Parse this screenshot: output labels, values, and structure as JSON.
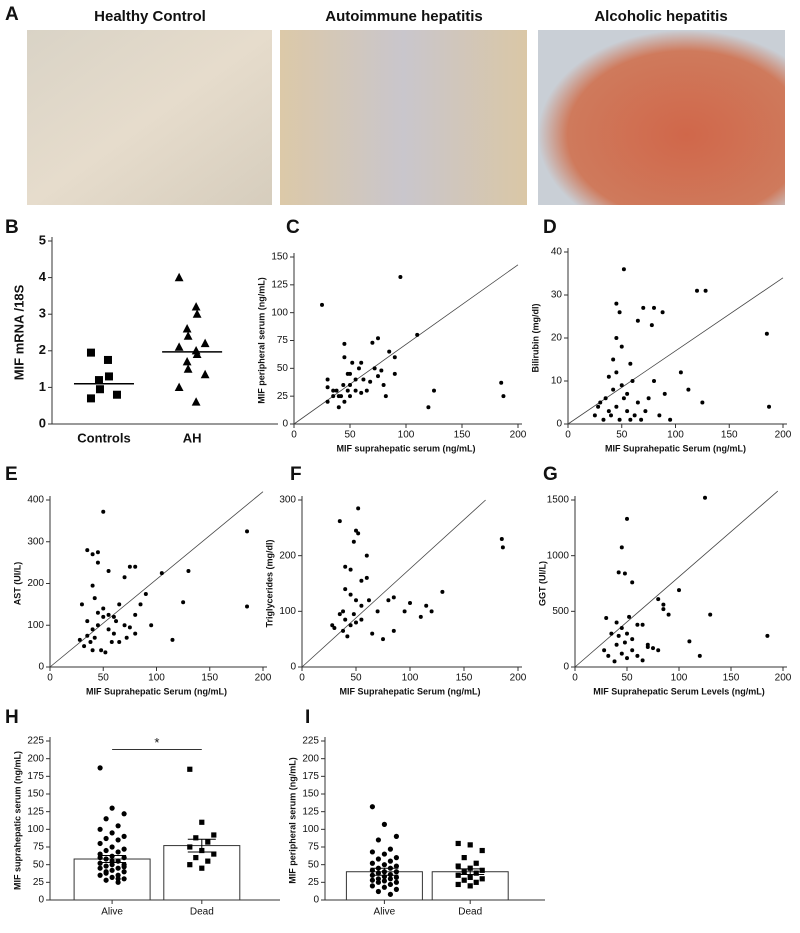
{
  "chart_data": [
    {
      "type": "image",
      "label": "A",
      "titles": [
        "Healthy Control",
        "Autoimmune hepatitis",
        "Alcoholic hepatitis"
      ]
    },
    {
      "type": "dotplot",
      "label": "B",
      "ylabel": "MIF mRNA /18S",
      "categories": [
        "Controls",
        "AH"
      ],
      "markers": [
        "square",
        "triangle"
      ],
      "values": [
        [
          1.95,
          1.75,
          1.3,
          1.2,
          0.95,
          0.8,
          0.7
        ],
        [
          4.0,
          3.2,
          3.0,
          2.6,
          2.4,
          2.2,
          2.1,
          2.0,
          1.9,
          1.7,
          1.5,
          1.35,
          1.0,
          0.6
        ]
      ],
      "medians": [
        1.1,
        1.97
      ],
      "ylim": [
        0,
        5
      ],
      "yticks": [
        0,
        1,
        2,
        3,
        4,
        5
      ]
    },
    {
      "type": "scatter",
      "label": "C",
      "xlabel": "MIF suprahepatic serum (ng/mL)",
      "ylabel": "MIF peripheral serum (ng/mL)",
      "x": [
        25,
        95,
        30,
        35,
        40,
        42,
        45,
        38,
        48,
        50,
        55,
        45,
        45,
        48,
        52,
        60,
        62,
        65,
        70,
        72,
        75,
        78,
        80,
        82,
        85,
        90,
        110,
        120,
        125,
        185,
        187,
        30,
        35,
        40,
        44,
        50,
        55,
        58,
        60,
        68,
        75,
        90,
        30,
        50
      ],
      "y": [
        107,
        132,
        33,
        25,
        15,
        25,
        20,
        30,
        30,
        35,
        40,
        60,
        72,
        45,
        55,
        55,
        40,
        30,
        73,
        50,
        43,
        48,
        35,
        25,
        65,
        45,
        80,
        15,
        30,
        37,
        25,
        20,
        30,
        25,
        35,
        25,
        30,
        50,
        28,
        38,
        77,
        60,
        40,
        45
      ],
      "fit_line": {
        "x": [
          0,
          200
        ],
        "y": [
          0,
          143
        ]
      },
      "xlim": [
        0,
        200
      ],
      "ylim": [
        0,
        150
      ],
      "xticks": [
        0,
        50,
        100,
        150,
        200
      ],
      "yticks": [
        0,
        25,
        50,
        75,
        100,
        125,
        150
      ]
    },
    {
      "type": "scatter",
      "label": "D",
      "xlabel": "MIF Suprahepatic Serum (ng/mL)",
      "ylabel": "Bilirubin (mg/dl)",
      "x": [
        52,
        45,
        48,
        45,
        50,
        42,
        58,
        65,
        70,
        80,
        88,
        78,
        120,
        128,
        185,
        187,
        105,
        125,
        112,
        30,
        35,
        38,
        40,
        42,
        45,
        48,
        50,
        55,
        55,
        60,
        62,
        65,
        68,
        72,
        75,
        80,
        85,
        90,
        95,
        25,
        28,
        33,
        38,
        45,
        52,
        58
      ],
      "y": [
        36,
        28,
        26,
        20,
        18,
        15,
        14,
        24,
        27,
        27,
        26,
        23,
        31,
        31,
        21,
        4,
        12,
        5,
        8,
        5,
        6,
        3,
        2,
        8,
        4,
        1,
        9,
        3,
        7,
        10,
        2,
        5,
        1,
        3,
        6,
        10,
        2,
        7,
        1,
        2,
        4,
        1,
        11,
        12,
        6,
        1
      ],
      "fit_line": {
        "x": [
          0,
          200
        ],
        "y": [
          0,
          34
        ]
      },
      "xlim": [
        0,
        200
      ],
      "ylim": [
        0,
        40
      ],
      "xticks": [
        0,
        50,
        100,
        150,
        200
      ],
      "yticks": [
        0,
        10,
        20,
        30,
        40
      ]
    },
    {
      "type": "scatter",
      "label": "E",
      "xlabel": "MIF Suprahepatic Serum (ng/mL)",
      "ylabel": "AST (UI/L)",
      "x": [
        50,
        35,
        40,
        45,
        45,
        40,
        42,
        55,
        75,
        70,
        80,
        105,
        130,
        185,
        185,
        125,
        115,
        95,
        85,
        90,
        30,
        35,
        40,
        45,
        50,
        55,
        60,
        62,
        65,
        70,
        75,
        80,
        28,
        32,
        38,
        42,
        48,
        52,
        58,
        65,
        72,
        80,
        45,
        50,
        55,
        40,
        35,
        60
      ],
      "y": [
        372,
        280,
        270,
        275,
        250,
        195,
        165,
        230,
        240,
        215,
        240,
        225,
        230,
        325,
        145,
        155,
        65,
        100,
        150,
        175,
        150,
        110,
        90,
        130,
        140,
        125,
        80,
        110,
        150,
        100,
        95,
        125,
        65,
        50,
        60,
        70,
        40,
        35,
        60,
        60,
        70,
        80,
        100,
        120,
        90,
        40,
        75,
        120
      ],
      "fit_line": {
        "x": [
          0,
          200
        ],
        "y": [
          0,
          420
        ]
      },
      "xlim": [
        0,
        200
      ],
      "ylim": [
        0,
        400
      ],
      "xticks": [
        0,
        50,
        100,
        150,
        200
      ],
      "yticks": [
        0,
        100,
        200,
        300,
        400
      ]
    },
    {
      "type": "scatter",
      "label": "F",
      "xlabel": "MIF Suprahepatic Serum (ng/mL)",
      "ylabel": "Triglycerides (mg/dl)",
      "x": [
        52,
        35,
        50,
        48,
        52,
        185,
        186,
        60,
        40,
        45,
        55,
        60,
        40,
        45,
        50,
        55,
        62,
        70,
        80,
        85,
        100,
        110,
        115,
        120,
        130,
        35,
        40,
        45,
        50,
        30,
        28,
        38,
        42,
        55,
        65,
        75,
        85,
        95,
        38,
        48
      ],
      "y": [
        285,
        262,
        245,
        225,
        240,
        230,
        215,
        200,
        180,
        175,
        155,
        160,
        140,
        130,
        120,
        110,
        120,
        100,
        120,
        125,
        115,
        90,
        110,
        100,
        135,
        95,
        85,
        75,
        80,
        70,
        75,
        65,
        55,
        85,
        60,
        50,
        65,
        100,
        100,
        95
      ],
      "fit_line": {
        "x": [
          0,
          170
        ],
        "y": [
          0,
          300
        ]
      },
      "xlim": [
        0,
        200
      ],
      "ylim": [
        0,
        300
      ],
      "xticks": [
        0,
        50,
        100,
        150,
        200
      ],
      "yticks": [
        0,
        100,
        200,
        300
      ]
    },
    {
      "type": "scatter",
      "label": "G",
      "xlabel": "MIF Suprahepatic Serum Levels (ng/mL)",
      "ylabel": "GGT (UI/L)",
      "x": [
        125,
        50,
        45,
        42,
        48,
        55,
        80,
        85,
        100,
        130,
        185,
        30,
        35,
        40,
        45,
        50,
        55,
        60,
        65,
        70,
        75,
        80,
        85,
        90,
        110,
        120,
        28,
        32,
        38,
        40,
        45,
        50,
        55,
        60,
        65,
        70,
        42,
        48,
        52
      ],
      "y": [
        1520,
        1330,
        1075,
        850,
        840,
        760,
        610,
        560,
        690,
        470,
        280,
        440,
        300,
        400,
        350,
        300,
        250,
        380,
        380,
        200,
        170,
        150,
        520,
        470,
        230,
        100,
        150,
        100,
        50,
        200,
        120,
        80,
        150,
        100,
        60,
        180,
        280,
        220,
        450
      ],
      "fit_line": {
        "x": [
          0,
          195
        ],
        "y": [
          0,
          1580
        ]
      },
      "xlim": [
        0,
        200
      ],
      "ylim": [
        0,
        1500
      ],
      "xticks": [
        0,
        50,
        100,
        150,
        200
      ],
      "yticks": [
        0,
        500,
        1000,
        1500
      ]
    },
    {
      "type": "bar_dot",
      "label": "H",
      "ylabel": "MIF suprahepatic serum (ng/mL)",
      "categories": [
        "Alive",
        "Dead"
      ],
      "markers": [
        "circle",
        "square"
      ],
      "means": [
        58,
        77
      ],
      "errors": [
        5,
        9
      ],
      "values": [
        [
          187,
          130,
          122,
          115,
          105,
          100,
          95,
          90,
          87,
          85,
          80,
          75,
          72,
          70,
          68,
          65,
          62,
          60,
          58,
          55,
          52,
          50,
          50,
          48,
          45,
          45,
          42,
          40,
          38,
          35,
          35,
          32,
          30,
          28,
          25,
          60,
          55,
          47,
          40,
          30
        ],
        [
          185,
          110,
          92,
          88,
          82,
          75,
          70,
          65,
          60,
          55,
          50,
          45
        ]
      ],
      "significance": {
        "y": 213,
        "label": "*"
      },
      "ylim": [
        0,
        225
      ],
      "yticks": [
        0,
        25,
        50,
        75,
        100,
        125,
        150,
        175,
        200,
        225
      ]
    },
    {
      "type": "bar_dot",
      "label": "I",
      "ylabel": "MIF peripheral serum (ng/mL)",
      "categories": [
        "Alive",
        "Dead"
      ],
      "markers": [
        "circle",
        "square"
      ],
      "means": [
        40,
        40
      ],
      "errors": [
        5,
        4
      ],
      "values": [
        [
          132,
          107,
          90,
          85,
          72,
          68,
          65,
          60,
          58,
          55,
          52,
          50,
          48,
          45,
          45,
          42,
          40,
          40,
          38,
          36,
          35,
          33,
          32,
          30,
          30,
          28,
          27,
          25,
          25,
          22,
          20,
          18,
          15,
          12,
          8
        ],
        [
          80,
          78,
          70,
          60,
          52,
          48,
          45,
          42,
          40,
          38,
          35,
          32,
          30,
          28,
          25,
          22,
          20
        ]
      ],
      "ylim": [
        0,
        225
      ],
      "yticks": [
        0,
        25,
        50,
        75,
        100,
        125,
        150,
        175,
        200,
        225
      ]
    }
  ]
}
